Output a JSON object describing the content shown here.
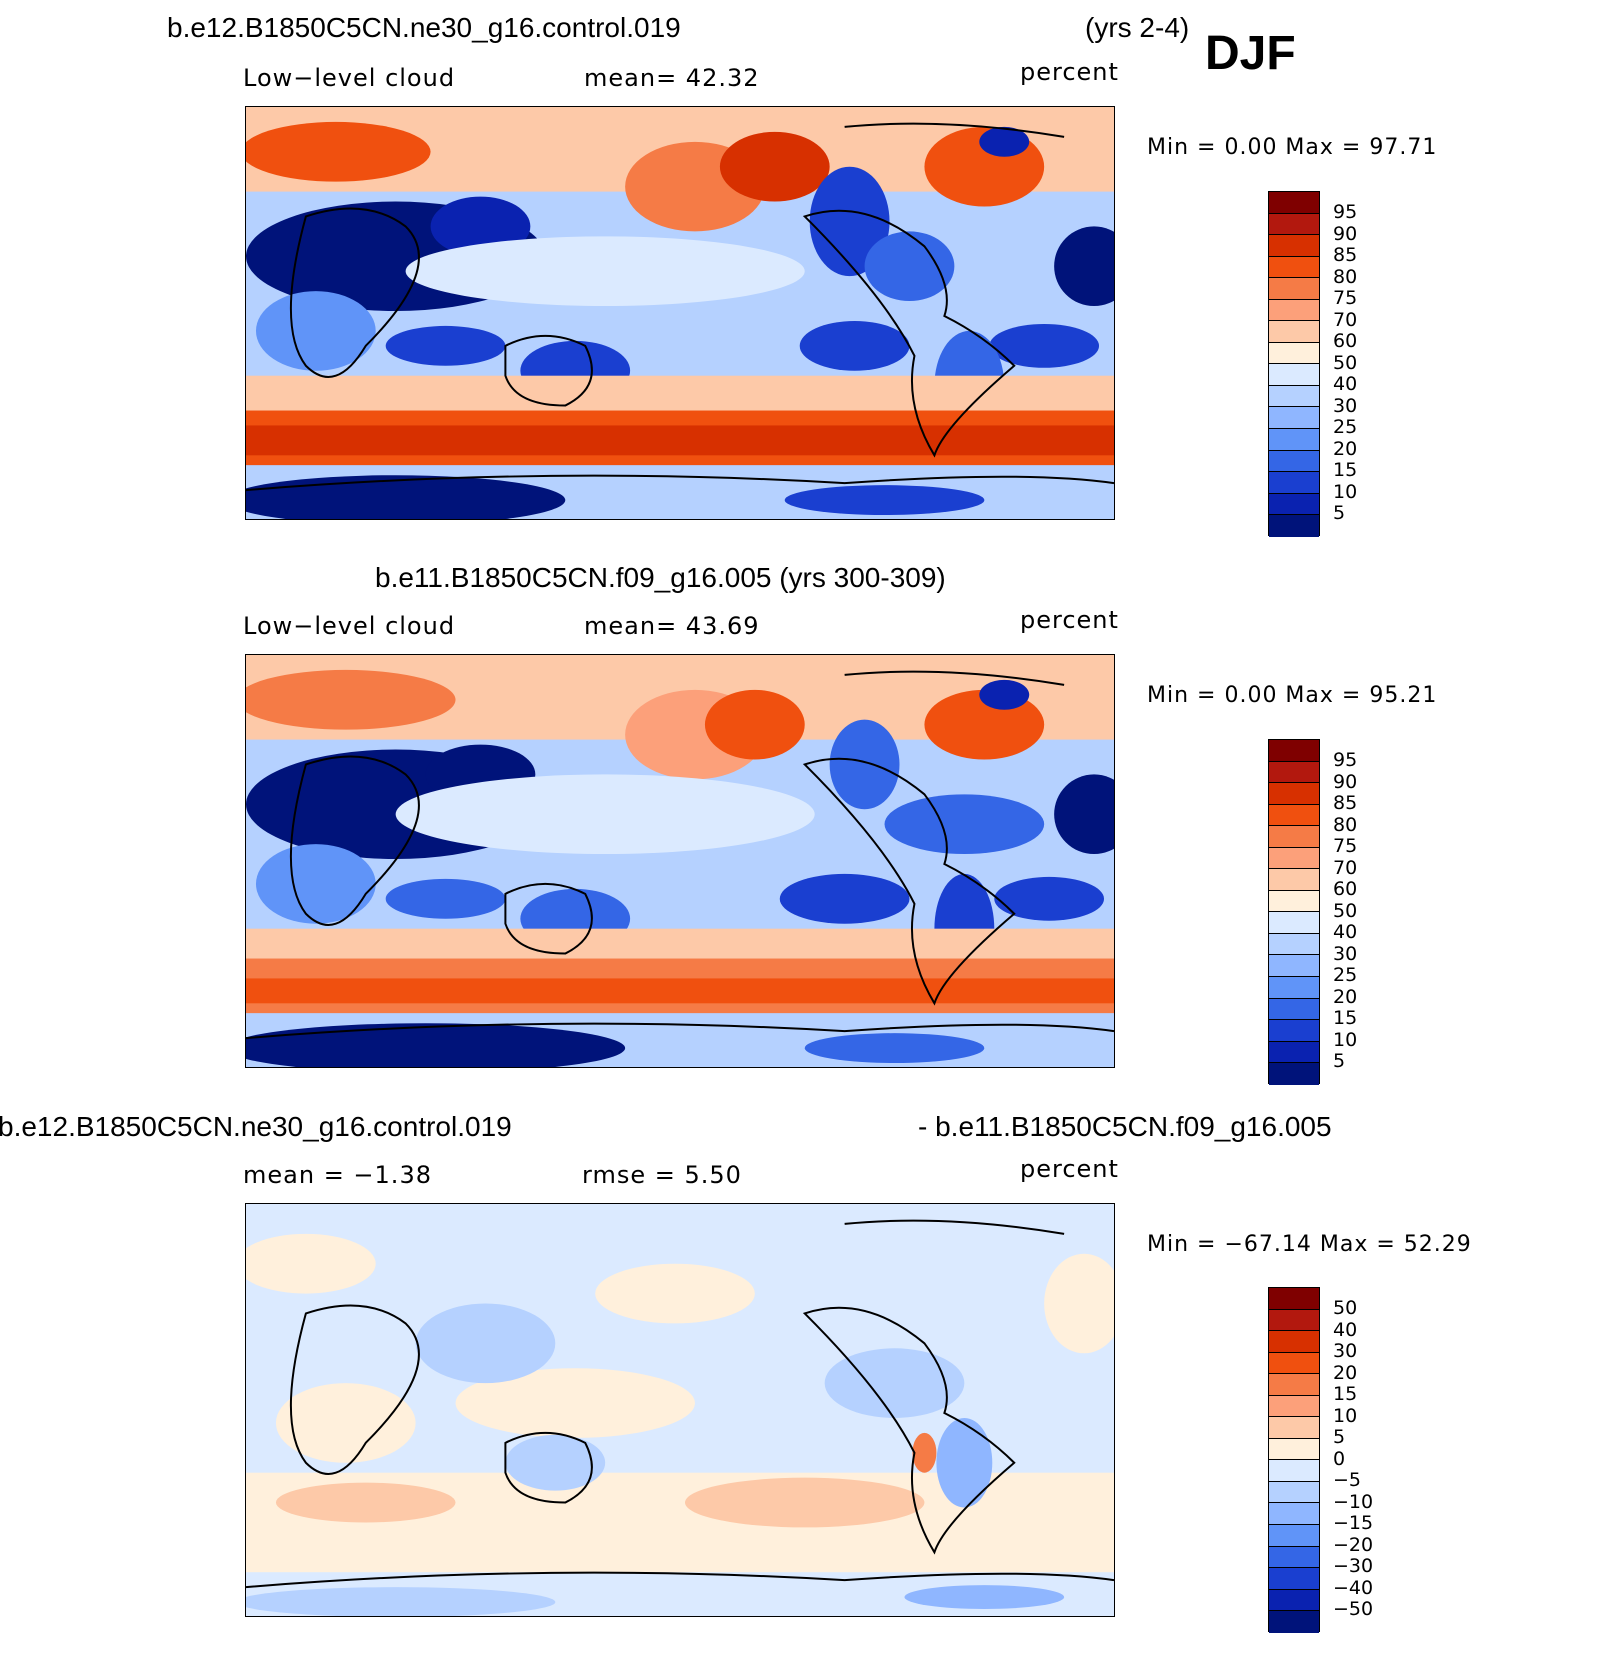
{
  "header": {
    "case1_title": "b.e12.B1850C5CN.ne30_g16.control.019",
    "case1_years": "(yrs 2-4)",
    "season": "DJF"
  },
  "panels": [
    {
      "title": "",
      "left": "Low−level cloud",
      "mid": "mean=   42.32",
      "right": "percent",
      "minmax": "Min =    0.00  Max =    97.71",
      "levels": [
        "95",
        "90",
        "85",
        "80",
        "75",
        "70",
        "60",
        "50",
        "40",
        "30",
        "25",
        "20",
        "15",
        "10",
        "5"
      ]
    },
    {
      "title": "b.e11.B1850C5CN.f09_g16.005 (yrs 300-309)",
      "left": "Low−level cloud",
      "mid": "mean=   43.69",
      "right": "percent",
      "minmax": "Min =    0.00  Max =    95.21",
      "levels": [
        "95",
        "90",
        "85",
        "80",
        "75",
        "70",
        "60",
        "50",
        "40",
        "30",
        "25",
        "20",
        "15",
        "10",
        "5"
      ]
    },
    {
      "title_left": "b.e12.B1850C5CN.ne30_g16.control.019",
      "title_right": "- b.e11.B1850C5CN.f09_g16.005",
      "left": "mean =   −1.38",
      "mid": "rmse =     5.50",
      "right": "percent",
      "minmax": "Min = −67.14  Max =    52.29",
      "levels": [
        "50",
        "40",
        "30",
        "20",
        "15",
        "10",
        "5",
        "0",
        "−5",
        "−10",
        "−15",
        "−20",
        "−30",
        "−40",
        "−50"
      ]
    }
  ],
  "colors": {
    "abs_scale": [
      "#7f0000",
      "#b2180e",
      "#d73000",
      "#f0500f",
      "#f57b46",
      "#fca07a",
      "#fdc9a8",
      "#fff0dc",
      "#dbeaff",
      "#b5d1ff",
      "#8fb6ff",
      "#6094f8",
      "#3466e6",
      "#1a3fd0",
      "#0a22b0",
      "#00137a"
    ],
    "diff_scale": [
      "#7f0000",
      "#b2180e",
      "#d73000",
      "#f0500f",
      "#f57b46",
      "#fca07a",
      "#fdc9a8",
      "#fff0dc",
      "#dbeaff",
      "#b5d1ff",
      "#8fb6ff",
      "#6094f8",
      "#3466e6",
      "#1a3fd0",
      "#0a22b0",
      "#00137a"
    ]
  }
}
